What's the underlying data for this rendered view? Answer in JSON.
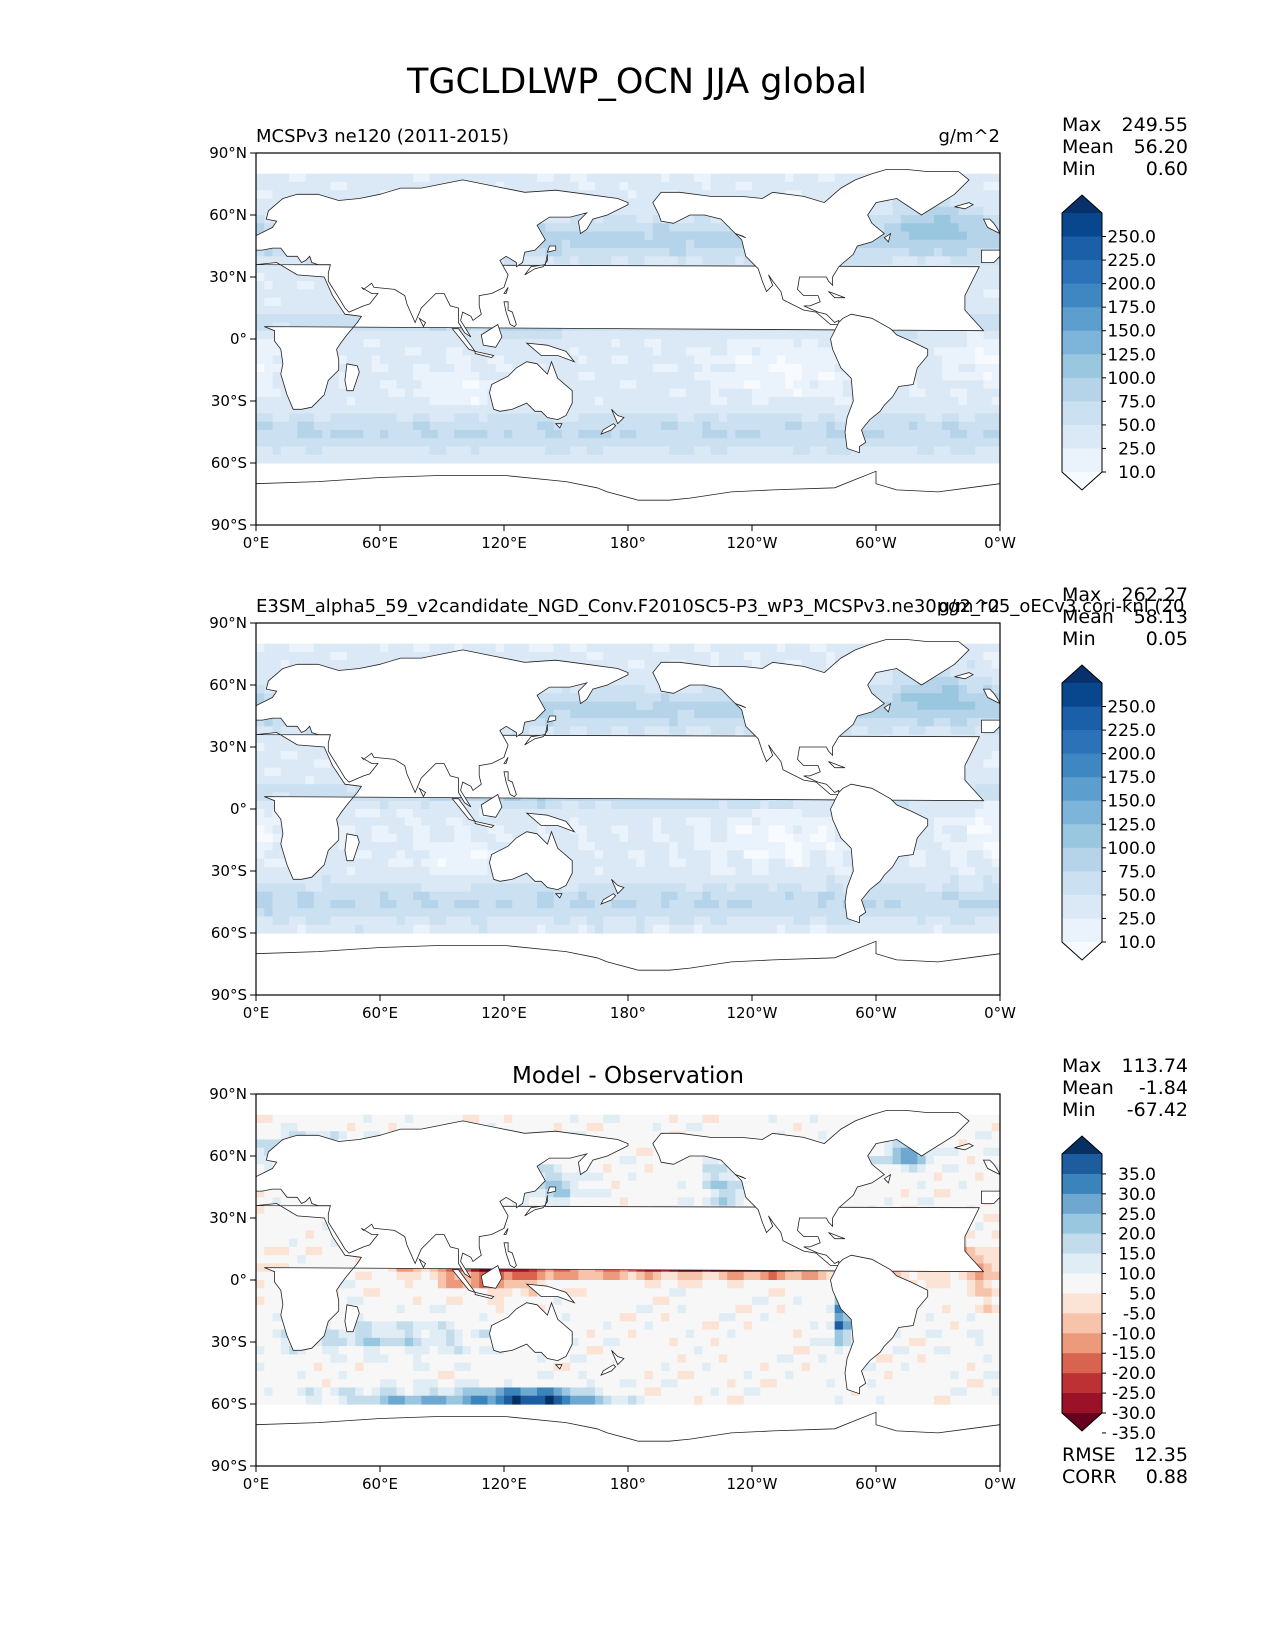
{
  "title": "TGCLDLWP_OCN JJA global",
  "chart_data": [
    {
      "type": "heatmap",
      "id": "test",
      "left_title": "MCSPv3 ne120 (2011-2015)",
      "units": "g/m^2",
      "center_title": "",
      "xlabel": "",
      "ylabel": "",
      "xlim": [
        0,
        360
      ],
      "ylim": [
        -90,
        90
      ],
      "x_ticks": [
        "0°E",
        "60°E",
        "120°E",
        "180°",
        "120°W",
        "60°W",
        "0°W"
      ],
      "y_ticks": [
        "90°N",
        "60°N",
        "30°N",
        "0°",
        "30°S",
        "60°S",
        "90°S"
      ],
      "stats": [
        {
          "label": "Max",
          "value": "249.55"
        },
        {
          "label": "Mean",
          "value": "56.20"
        },
        {
          "label": "Min",
          "value": "0.60"
        }
      ],
      "extra_stats": [],
      "colorbar": {
        "labels": [
          "250.0",
          "225.0",
          "200.0",
          "175.0",
          "150.0",
          "125.0",
          "100.0",
          "75.0",
          "50.0",
          "25.0",
          "10.0"
        ],
        "colors": [
          "#08306b",
          "#08478d",
          "#1b5fa9",
          "#2b72b8",
          "#3f87c3",
          "#5c9fcf",
          "#7db4d9",
          "#9ac7e0",
          "#b6d4e9",
          "#cbe0f1",
          "#dbe9f6",
          "#eaf3fb",
          "#f7fbff"
        ]
      }
    },
    {
      "type": "heatmap",
      "id": "reference",
      "left_title": "E3SM_alpha5_59_v2candidate_NGD_Conv.F2010SC5-P3_wP3_MCSPv3.ne30pg2_r05_oECv3.cori-knl (20",
      "units": "g/m^2",
      "center_title": "",
      "xlabel": "",
      "ylabel": "",
      "xlim": [
        0,
        360
      ],
      "ylim": [
        -90,
        90
      ],
      "x_ticks": [
        "0°E",
        "60°E",
        "120°E",
        "180°",
        "120°W",
        "60°W",
        "0°W"
      ],
      "y_ticks": [
        "90°N",
        "60°N",
        "30°N",
        "0°",
        "30°S",
        "60°S",
        "90°S"
      ],
      "stats": [
        {
          "label": "Max",
          "value": "262.27"
        },
        {
          "label": "Mean",
          "value": "58.13"
        },
        {
          "label": "Min",
          "value": "0.05"
        }
      ],
      "extra_stats": [],
      "colorbar": {
        "labels": [
          "250.0",
          "225.0",
          "200.0",
          "175.0",
          "150.0",
          "125.0",
          "100.0",
          "75.0",
          "50.0",
          "25.0",
          "10.0"
        ],
        "colors": [
          "#08306b",
          "#08478d",
          "#1b5fa9",
          "#2b72b8",
          "#3f87c3",
          "#5c9fcf",
          "#7db4d9",
          "#9ac7e0",
          "#b6d4e9",
          "#cbe0f1",
          "#dbe9f6",
          "#eaf3fb",
          "#f7fbff"
        ]
      }
    },
    {
      "type": "heatmap",
      "id": "difference",
      "left_title": "",
      "units": "",
      "center_title": "Model - Observation",
      "xlabel": "",
      "ylabel": "",
      "xlim": [
        0,
        360
      ],
      "ylim": [
        -90,
        90
      ],
      "x_ticks": [
        "0°E",
        "60°E",
        "120°E",
        "180°",
        "120°W",
        "60°W",
        "0°W"
      ],
      "y_ticks": [
        "90°N",
        "60°N",
        "30°N",
        "0°",
        "30°S",
        "60°S",
        "90°S"
      ],
      "stats": [
        {
          "label": "Max",
          "value": "113.74"
        },
        {
          "label": "Mean",
          "value": "-1.84"
        },
        {
          "label": "Min",
          "value": "-67.42"
        }
      ],
      "extra_stats": [
        {
          "label": "RMSE",
          "value": "12.35"
        },
        {
          "label": "CORR",
          "value": "0.88"
        }
      ],
      "colorbar": {
        "labels": [
          "35.0",
          "30.0",
          "25.0",
          "20.0",
          "15.0",
          "10.0",
          "5.0",
          "-5.0",
          "-10.0",
          "-15.0",
          "-20.0",
          "-25.0",
          "-30.0",
          "-35.0"
        ],
        "colors": [
          "#053061",
          "#1c5c9f",
          "#3a83bb",
          "#6ea8d0",
          "#9ac7e0",
          "#c2dcec",
          "#e1edf5",
          "#f7f7f7",
          "#fbe3d5",
          "#f7c4ab",
          "#ec9a7b",
          "#d8634f",
          "#bd3034",
          "#9a1128",
          "#67001f"
        ]
      }
    }
  ]
}
